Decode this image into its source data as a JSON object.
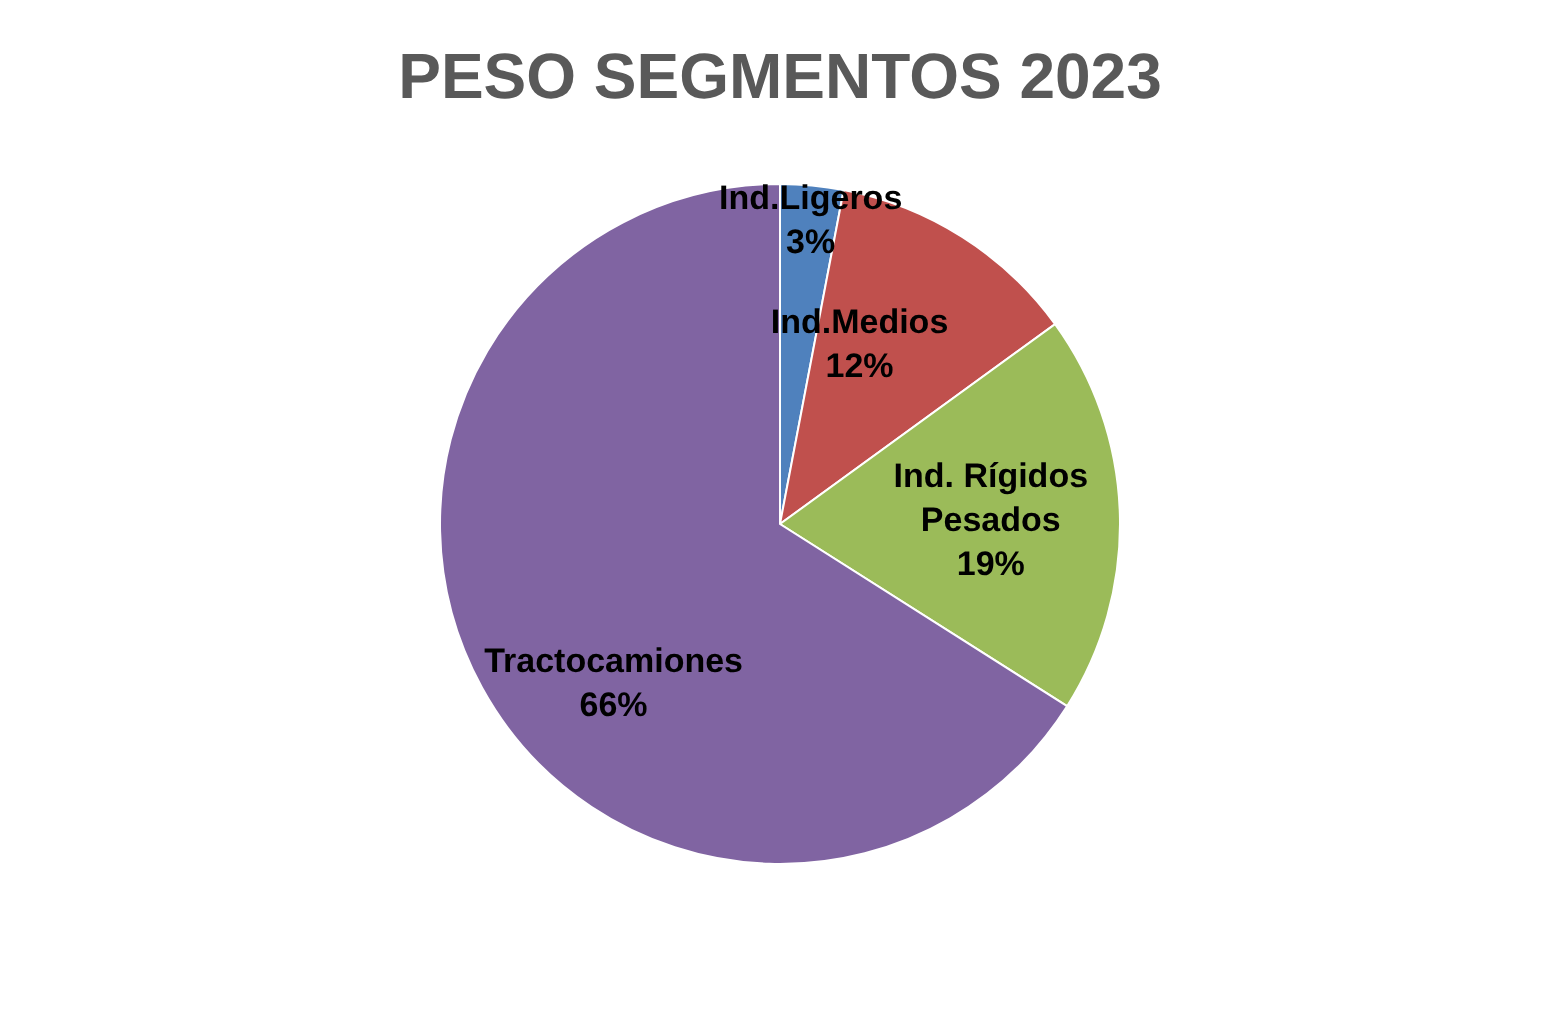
{
  "chart_data": {
    "type": "pie",
    "title": "PESO SEGMENTOS 2023",
    "categories": [
      "Ind.Ligeros",
      "Ind.Medios",
      "Ind. Rígidos Pesados",
      "Tractocamiones"
    ],
    "values": [
      3,
      12,
      19,
      66
    ],
    "colors": [
      "#4f81bd",
      "#c0504d",
      "#9bbb59",
      "#8064a2"
    ],
    "value_labels": [
      "3%",
      "12%",
      "19%",
      "66%"
    ]
  }
}
